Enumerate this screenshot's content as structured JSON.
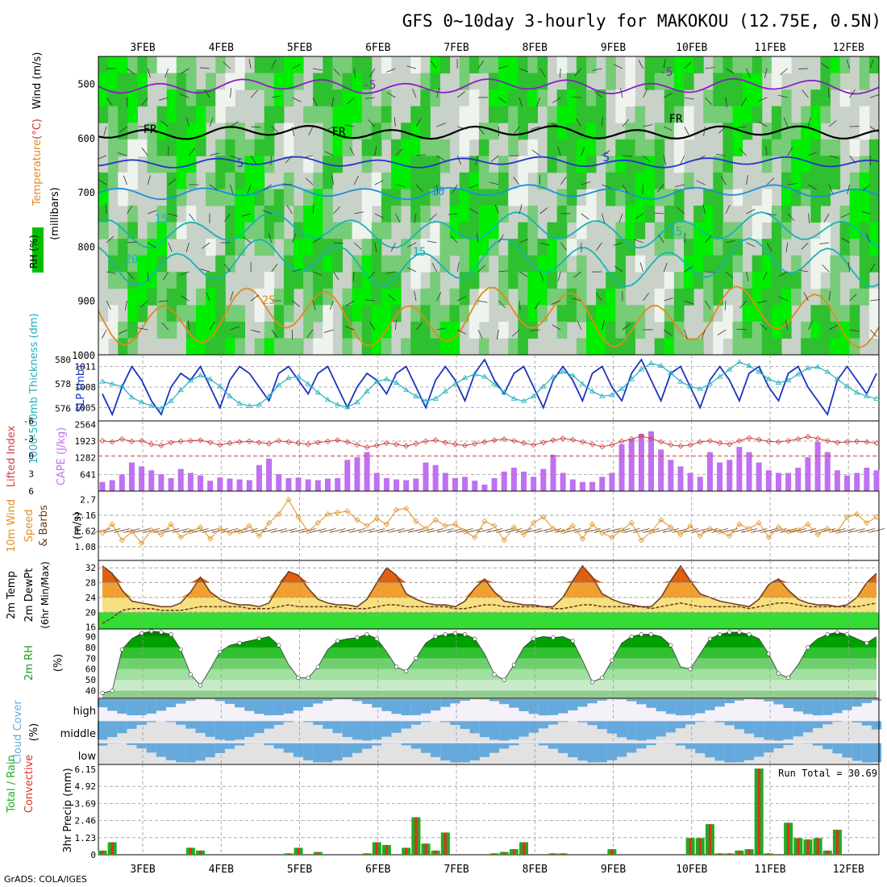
{
  "title": "GFS 0~10day 3-hourly for MAKOKOU (12.75E, 0.5N)",
  "credit": "GrADS: COLA/IGES",
  "colors": {
    "rh_dark": "#2e9e2e",
    "rh_light": "#00ee00",
    "rh_mid": "#66cc66",
    "gray": "#c8d2c8",
    "frz": "#000000",
    "purple": "#8a1fc2",
    "blue1": "#2233cc",
    "blue2": "#1a8fe0",
    "teal": "#16b3b3",
    "orange": "#e08a1e",
    "slp": "#1a33c0",
    "thick": "#22b0c0",
    "cape": "#c070f0",
    "li": "#d04040",
    "wind": "#e09020",
    "barb": "#6b3a1e",
    "temp": "#f0a020",
    "dew": "#6b3a1e",
    "rh2m": "#1a9c1a",
    "cloud": "#66aadd",
    "precip_total": "#22aa22",
    "precip_conv": "#e03020"
  },
  "chart_data": {
    "type": "meteogram",
    "dates": [
      "3FEB",
      "4FEB",
      "5FEB",
      "6FEB",
      "7FEB",
      "8FEB",
      "9FEB",
      "10FEB",
      "11FEB",
      "12FEB"
    ],
    "panels": {
      "upper_air": {
        "ylabel_parts": [
          "RH (%)",
          "Temperature",
          "(°C)",
          "Wind (m/s)",
          "(millibars)"
        ],
        "yticks": [
          "500",
          "600",
          "700",
          "800",
          "900",
          "1000"
        ],
        "contour_labels": [
          "-5",
          "-5",
          "FR",
          "FR",
          "FR",
          "5",
          "5",
          "10",
          "15",
          "15",
          "20",
          "25",
          "15"
        ]
      },
      "slp_thickness": {
        "left_label": "1000-500mb Thickness (dm)",
        "right_label": "SLP (mb)",
        "left_ticks": [
          "580",
          "578",
          "576"
        ],
        "right_ticks": [
          "1011",
          "1008",
          "1005"
        ],
        "slp": [
          1007,
          1004,
          1008,
          1011,
          1009,
          1006,
          1004,
          1008,
          1010,
          1009,
          1011,
          1008,
          1005,
          1009,
          1011,
          1010,
          1008,
          1006,
          1010,
          1011,
          1009,
          1007,
          1010,
          1011,
          1008,
          1005,
          1008,
          1010,
          1009,
          1007,
          1010,
          1011,
          1008,
          1005,
          1009,
          1011,
          1009,
          1006,
          1010,
          1012,
          1009,
          1007,
          1010,
          1011,
          1008,
          1005,
          1009,
          1011,
          1009,
          1006,
          1010,
          1011,
          1008,
          1006,
          1010,
          1012,
          1009,
          1006,
          1010,
          1011,
          1008,
          1005,
          1009,
          1011,
          1009,
          1006,
          1010,
          1011,
          1008,
          1006,
          1010,
          1011,
          1008,
          1006,
          1004,
          1009,
          1011,
          1009,
          1007,
          1010
        ],
        "thickness": [
          578.2,
          578.0,
          577.8,
          576.9,
          576.5,
          576.2,
          576.0,
          576.6,
          577.5,
          578.3,
          578.7,
          578.4,
          577.8,
          577.0,
          576.4,
          576.2,
          576.3,
          577.0,
          577.9,
          578.5,
          578.6,
          578.0,
          577.3,
          576.7,
          576.3,
          576.1,
          576.5,
          577.4,
          578.2,
          578.4,
          578.1,
          577.5,
          577.0,
          576.6,
          576.8,
          577.4,
          578.0,
          578.5,
          578.8,
          578.6,
          578.0,
          577.3,
          576.8,
          576.6,
          577.0,
          577.8,
          578.6,
          579.0,
          578.7,
          578.0,
          577.4,
          577.0,
          577.1,
          577.6,
          578.4,
          579.2,
          579.7,
          579.5,
          578.9,
          578.2,
          577.8,
          577.6,
          578.0,
          578.6,
          579.2,
          579.8,
          579.5,
          579.0,
          578.4,
          578.1,
          578.3,
          578.8,
          579.3,
          579.4,
          579.0,
          578.4,
          577.8,
          577.3,
          577.0,
          576.8
        ]
      },
      "cape_li": {
        "left_label": "Lifted Index",
        "right_label": "CAPE (J/kg)",
        "left_ticks": [
          "-6",
          "-3",
          "0",
          "3",
          "6"
        ],
        "right_ticks": [
          "2564",
          "1923",
          "1282",
          "641"
        ],
        "cape": [
          350,
          420,
          640,
          1100,
          950,
          800,
          650,
          500,
          850,
          700,
          600,
          400,
          520,
          480,
          450,
          420,
          1000,
          1250,
          650,
          500,
          520,
          450,
          420,
          480,
          500,
          1200,
          1300,
          1500,
          700,
          500,
          450,
          420,
          480,
          1100,
          1000,
          700,
          500,
          550,
          400,
          250,
          500,
          750,
          900,
          750,
          550,
          850,
          1400,
          700,
          450,
          350,
          350,
          550,
          700,
          1800,
          2000,
          2200,
          2300,
          1600,
          1200,
          950,
          700,
          550,
          1500,
          1100,
          1200,
          1700,
          1500,
          1100,
          800,
          700,
          700,
          900,
          1300,
          1900,
          1500,
          800,
          600,
          700,
          900,
          800
        ],
        "lifted_index": [
          -2.6,
          -2.4,
          -2.9,
          -2.5,
          -2.6,
          -2.0,
          -1.8,
          -2.3,
          -2.5,
          -2.6,
          -2.7,
          -2.3,
          -1.9,
          -2.2,
          -2.4,
          -2.5,
          -2.3,
          -2.1,
          -2.6,
          -2.4,
          -2.2,
          -2.0,
          -2.3,
          -2.5,
          -2.7,
          -2.4,
          -1.9,
          -1.5,
          -1.8,
          -2.2,
          -2.0,
          -1.7,
          -2.1,
          -2.5,
          -2.7,
          -2.3,
          -2.0,
          -1.8,
          -2.1,
          -2.4,
          -2.7,
          -2.9,
          -2.6,
          -2.2,
          -1.9,
          -2.3,
          -2.7,
          -3.0,
          -2.8,
          -2.4,
          -2.0,
          -1.6,
          -1.9,
          -2.5,
          -2.9,
          -3.4,
          -3.0,
          -2.4,
          -1.9,
          -1.7,
          -1.9,
          -2.4,
          -2.6,
          -2.2,
          -2.0,
          -2.6,
          -3.1,
          -2.8,
          -2.5,
          -2.4,
          -2.6,
          -2.9,
          -3.3,
          -3.0,
          -2.6,
          -2.3,
          -2.4,
          -2.5,
          -2.4,
          -2.2
        ]
      },
      "wind10m": {
        "label_parts": [
          "10m Wind",
          "Speed",
          "& Barbs",
          "(m/s)"
        ],
        "ticks": [
          "2.7",
          "2.16",
          "1.62",
          "1.08"
        ],
        "speed": [
          1.55,
          1.85,
          1.3,
          1.6,
          1.2,
          1.65,
          1.5,
          1.85,
          1.4,
          1.6,
          1.75,
          1.35,
          1.7,
          1.55,
          1.6,
          1.8,
          1.45,
          1.9,
          2.2,
          2.7,
          2.1,
          1.6,
          1.9,
          2.2,
          2.25,
          2.3,
          2.0,
          1.8,
          2.05,
          1.85,
          2.35,
          2.4,
          1.95,
          1.7,
          2.0,
          1.8,
          1.85,
          1.6,
          1.4,
          1.95,
          1.8,
          1.3,
          1.75,
          1.5,
          1.9,
          2.1,
          1.7,
          1.6,
          1.8,
          1.35,
          1.85,
          1.55,
          1.4,
          1.65,
          1.9,
          1.3,
          1.6,
          2.0,
          1.75,
          1.5,
          1.8,
          1.45,
          1.7,
          1.6,
          1.45,
          1.85,
          1.7,
          1.9,
          1.4,
          1.75,
          1.6,
          1.65,
          1.85,
          1.5,
          1.7,
          1.6,
          2.1,
          2.2,
          1.9,
          2.1
        ]
      },
      "temp2m": {
        "label_parts": [
          "2m Temp",
          "2m DewPt",
          "(6hr Min/Max)"
        ],
        "ticks": [
          "32",
          "28",
          "24",
          "20",
          "16"
        ],
        "temp": [
          32.5,
          30.5,
          26,
          23,
          22.5,
          22,
          21.5,
          21.5,
          22.5,
          25.5,
          29.5,
          25.5,
          23.5,
          22.5,
          22,
          22,
          21.5,
          22.5,
          27,
          31,
          30,
          26.5,
          23.5,
          22.5,
          22,
          22,
          21.5,
          23.5,
          28,
          32,
          30,
          25,
          23.5,
          22.5,
          22,
          22,
          21.5,
          23,
          26.5,
          29,
          25.5,
          23,
          22.5,
          22,
          22,
          21.5,
          21.5,
          24,
          28.5,
          32.5,
          29.5,
          25,
          23.5,
          22.5,
          22,
          21.5,
          21.5,
          24,
          28.5,
          32.5,
          28.5,
          25,
          24,
          23,
          22.5,
          22,
          21.5,
          23.5,
          27.5,
          29,
          26,
          23.5,
          22.5,
          22,
          22,
          21.5,
          22,
          24,
          28,
          30.5
        ],
        "dew": [
          17,
          18.5,
          20.5,
          21,
          21,
          21,
          20.5,
          20.5,
          20.5,
          21,
          21.5,
          21.5,
          21.5,
          21.5,
          21.5,
          21,
          21,
          21,
          21.5,
          22,
          21.5,
          21.5,
          21.5,
          21.5,
          21.5,
          21,
          21,
          21,
          21.5,
          22,
          22,
          21.5,
          21.5,
          21.5,
          21.5,
          21.5,
          21,
          21,
          21.5,
          22,
          22,
          21.5,
          21.5,
          21.5,
          21.5,
          21.5,
          21,
          21,
          21.5,
          22,
          22,
          21.5,
          21.5,
          21.5,
          21.5,
          21.5,
          21,
          21.5,
          22,
          22.5,
          22,
          21.5,
          21.5,
          21.5,
          21.5,
          21.5,
          21,
          21.5,
          22,
          22.5,
          22.5,
          22,
          21.5,
          21.5,
          21.5,
          21.5,
          21.5,
          21.5,
          22,
          22.5
        ]
      },
      "rh2m": {
        "label_parts": [
          "2m RH",
          "(%)"
        ],
        "ticks": [
          "90",
          "80",
          "70",
          "60",
          "50",
          "40"
        ],
        "rh": [
          38,
          40,
          78,
          88,
          93,
          95,
          94,
          92,
          78,
          55,
          45,
          60,
          76,
          82,
          84,
          86,
          88,
          90,
          82,
          64,
          52,
          52,
          62,
          78,
          86,
          88,
          89,
          92,
          88,
          76,
          62,
          58,
          70,
          84,
          90,
          92,
          93,
          92,
          88,
          74,
          55,
          50,
          64,
          80,
          88,
          90,
          89,
          90,
          86,
          68,
          48,
          52,
          68,
          84,
          90,
          92,
          92,
          90,
          82,
          62,
          60,
          74,
          88,
          92,
          94,
          94,
          92,
          88,
          74,
          56,
          52,
          64,
          80,
          88,
          92,
          94,
          92,
          88,
          84,
          90
        ]
      },
      "cloud": {
        "label_parts": [
          "Cloud Cover",
          "(%)"
        ],
        "rows": [
          "high",
          "middle",
          "low"
        ]
      },
      "precip": {
        "label_parts": [
          "Total / Rain",
          "Convective",
          "3hr Precip (mm)"
        ],
        "ticks": [
          "6.15",
          "4.92",
          "3.69",
          "2.46",
          "1.23",
          "0"
        ],
        "run_total": "Run Total = 30.69",
        "total": [
          0.3,
          0.9,
          0,
          0,
          0,
          0,
          0,
          0,
          0,
          0.5,
          0.3,
          0,
          0,
          0,
          0,
          0,
          0,
          0,
          0,
          0.1,
          0.5,
          0,
          0.2,
          0,
          0,
          0,
          0,
          0.1,
          0.9,
          0.7,
          0,
          0.5,
          2.7,
          0.8,
          0.3,
          1.6,
          0,
          0,
          0,
          0,
          0.1,
          0.2,
          0.4,
          0.9,
          0,
          0,
          0.1,
          0.1,
          0,
          0,
          0,
          0,
          0.4,
          0,
          0,
          0,
          0,
          0,
          0,
          0,
          1.2,
          1.2,
          2.2,
          0.1,
          0.1,
          0.3,
          0.4,
          6.2,
          0.1,
          0,
          2.3,
          1.2,
          1.1,
          1.2,
          0.3,
          1.8,
          0,
          0,
          0,
          0
        ]
      }
    }
  }
}
